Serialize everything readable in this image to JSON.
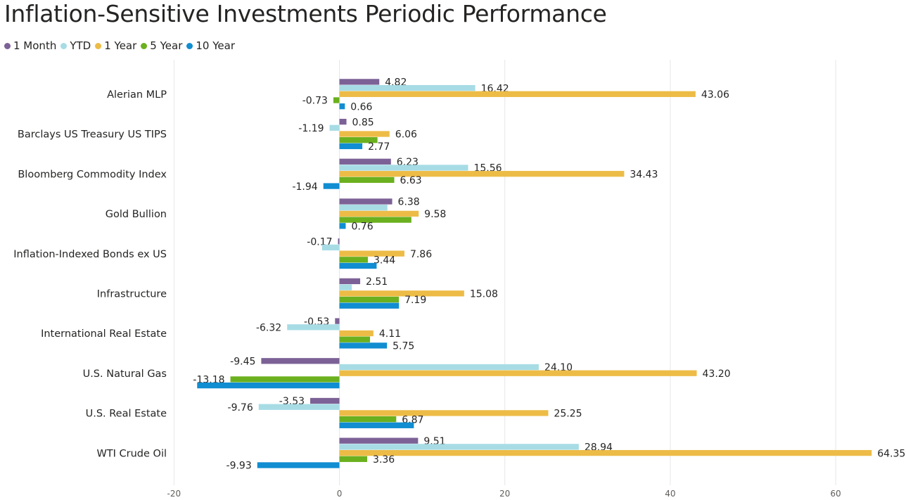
{
  "chart_data": {
    "type": "bar",
    "orientation": "horizontal",
    "title": "Inflation-Sensitive Investments Periodic Performance",
    "categories": [
      "Alerian MLP",
      "Barclays US Treasury US TIPS",
      "Bloomberg Commodity Index",
      "Gold Bullion",
      "Inflation-Indexed Bonds ex US",
      "Infrastructure",
      "International Real Estate",
      "U.S. Natural Gas",
      "U.S. Real Estate",
      "WTI Crude Oil"
    ],
    "series": [
      {
        "name": "1 Month",
        "color": "#7C6196",
        "values": [
          4.82,
          0.85,
          6.23,
          6.38,
          -0.17,
          2.51,
          -0.53,
          -9.45,
          -3.53,
          9.51
        ],
        "labels": [
          "4.82",
          "0.85",
          "6.23",
          "6.38",
          "-0.17",
          "2.51",
          "-0.53",
          "-9.45",
          "-3.53",
          "9.51"
        ]
      },
      {
        "name": "YTD",
        "color": "#A7DCE5",
        "values": [
          16.42,
          -1.19,
          15.56,
          5.8,
          -2.1,
          1.5,
          -6.32,
          24.1,
          -9.76,
          28.94
        ],
        "labels": [
          "16.42",
          "-1.19",
          "15.56",
          "",
          "",
          "",
          "-6.32",
          "24.10",
          "-9.76",
          "28.94"
        ]
      },
      {
        "name": "1 Year",
        "color": "#EDBC47",
        "values": [
          43.06,
          6.06,
          34.43,
          9.58,
          7.86,
          15.08,
          4.11,
          43.2,
          25.25,
          64.35
        ],
        "labels": [
          "43.06",
          "6.06",
          "34.43",
          "9.58",
          "7.86",
          "15.08",
          "4.11",
          "43.20",
          "25.25",
          "64.35"
        ]
      },
      {
        "name": "5 Year",
        "color": "#6BB01E",
        "values": [
          -0.73,
          4.6,
          6.63,
          8.7,
          3.44,
          7.19,
          3.7,
          -13.18,
          6.87,
          3.36
        ],
        "labels": [
          "-0.73",
          "",
          "6.63",
          "",
          "3.44",
          "7.19",
          "",
          "-13.18",
          "6.87",
          "3.36"
        ]
      },
      {
        "name": "10 Year",
        "color": "#118DD1",
        "values": [
          0.66,
          2.77,
          -1.94,
          0.76,
          4.5,
          7.2,
          5.75,
          -17.2,
          9.0,
          -9.93
        ],
        "labels": [
          "0.66",
          "2.77",
          "-1.94",
          "0.76",
          "",
          "",
          "5.75",
          "",
          "",
          "-9.93"
        ]
      }
    ],
    "x_ticks": [
      -20,
      0,
      20,
      40,
      60
    ],
    "x_tick_labels": [
      "-20",
      "0",
      "20",
      "40",
      "60"
    ],
    "xlim": [
      -20.2,
      68.5
    ],
    "grid": true,
    "legend_position": "top-left"
  }
}
